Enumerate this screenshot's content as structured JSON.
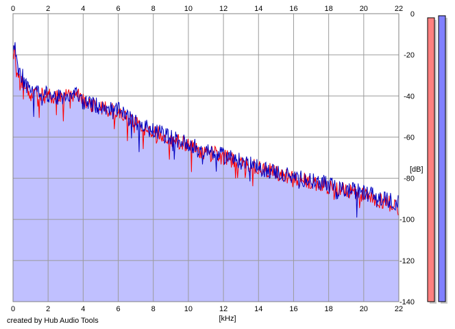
{
  "footer": {
    "credit": "created by Hub Audio Tools"
  },
  "chart_data": {
    "type": "line",
    "title": "",
    "xlabel": "[kHz]",
    "ylabel": "[dB]",
    "xlim": [
      0,
      22
    ],
    "ylim": [
      -140,
      0
    ],
    "x_ticks": [
      "0",
      "2",
      "4",
      "6",
      "8",
      "10",
      "12",
      "14",
      "16",
      "18",
      "20",
      "22"
    ],
    "y_ticks": [
      "0",
      "-20",
      "-40",
      "-60",
      "-80",
      "-100",
      "-120",
      "-140"
    ],
    "grid": true,
    "legend": "none",
    "area_fill_color": "#c0c0ff",
    "x": [
      0.0,
      0.1,
      0.2,
      0.4,
      0.6,
      0.8,
      1.0,
      1.5,
      2.0,
      2.5,
      3.0,
      3.5,
      4.0,
      4.5,
      5.0,
      5.5,
      6.0,
      6.5,
      7.0,
      7.5,
      8.0,
      8.5,
      9.0,
      9.5,
      10.0,
      10.5,
      11.0,
      11.5,
      12.0,
      12.5,
      13.0,
      13.5,
      14.0,
      14.5,
      15.0,
      15.5,
      16.0,
      16.5,
      17.0,
      17.5,
      18.0,
      18.5,
      19.0,
      19.5,
      20.0,
      20.5,
      21.0,
      21.5,
      22.0
    ],
    "series": [
      {
        "color": "#ff0000",
        "values": [
          -21,
          -18,
          -25,
          -31,
          -33,
          -37,
          -39,
          -40,
          -40,
          -40,
          -39,
          -39,
          -42,
          -44,
          -46,
          -47,
          -48,
          -51,
          -54,
          -56,
          -58,
          -59,
          -61,
          -62,
          -64,
          -66,
          -68,
          -68,
          -70,
          -71,
          -73,
          -74,
          -75,
          -76,
          -77,
          -79,
          -80,
          -81,
          -82,
          -83,
          -84,
          -85,
          -86,
          -87,
          -88,
          -90,
          -91,
          -92,
          -94
        ]
      },
      {
        "color": "#0000c0",
        "values": [
          -19,
          -16,
          -23,
          -29,
          -31,
          -35,
          -38,
          -39,
          -39,
          -41,
          -40,
          -38,
          -43,
          -44,
          -45,
          -46,
          -47,
          -50,
          -53,
          -55,
          -57,
          -58,
          -60,
          -62,
          -63,
          -65,
          -67,
          -68,
          -69,
          -70,
          -72,
          -73,
          -75,
          -76,
          -77,
          -78,
          -79,
          -80,
          -81,
          -82,
          -83,
          -85,
          -86,
          -86,
          -87,
          -88,
          -90,
          -91,
          -92
        ]
      }
    ],
    "level_meters": [
      {
        "color": "#ff8080",
        "value": -2
      },
      {
        "color": "#8080ff",
        "value": -1
      }
    ]
  }
}
